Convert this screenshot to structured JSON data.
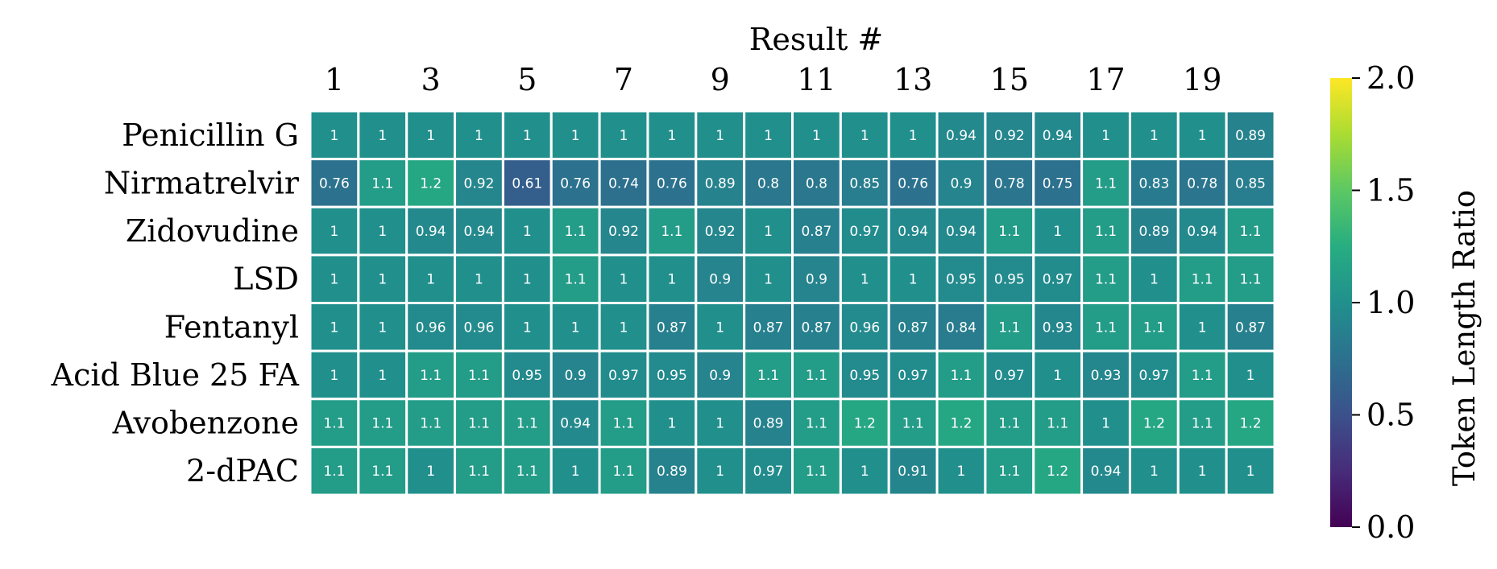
{
  "chart_data": {
    "type": "heatmap",
    "title": "",
    "xlabel": "Result #",
    "ylabel": "",
    "x_tick_labels": [
      "1",
      "3",
      "5",
      "7",
      "9",
      "11",
      "13",
      "15",
      "17",
      "19"
    ],
    "x_tick_positions": [
      1,
      3,
      5,
      7,
      9,
      11,
      13,
      15,
      17,
      19
    ],
    "columns": [
      1,
      2,
      3,
      4,
      5,
      6,
      7,
      8,
      9,
      10,
      11,
      12,
      13,
      14,
      15,
      16,
      17,
      18,
      19,
      20
    ],
    "rows": [
      "Penicillin G",
      "Nirmatrelvir",
      "Zidovudine",
      "LSD",
      "Fentanyl",
      "Acid Blue 25 FA",
      "Avobenzone",
      "2-dPAC"
    ],
    "values": [
      [
        1,
        1,
        1,
        1,
        1,
        1,
        1,
        1,
        1,
        1,
        1,
        1,
        1,
        0.94,
        0.92,
        0.94,
        1,
        1,
        1,
        0.89
      ],
      [
        0.76,
        1.1,
        1.2,
        0.92,
        0.61,
        0.76,
        0.74,
        0.76,
        0.89,
        0.8,
        0.8,
        0.85,
        0.76,
        0.9,
        0.78,
        0.75,
        1.1,
        0.83,
        0.78,
        0.85
      ],
      [
        1,
        1,
        0.94,
        0.94,
        1,
        1.1,
        0.92,
        1.1,
        0.92,
        1,
        0.87,
        0.97,
        0.94,
        0.94,
        1.1,
        1,
        1.1,
        0.89,
        0.94,
        1.1
      ],
      [
        1,
        1,
        1,
        1,
        1,
        1.1,
        1,
        1,
        0.9,
        1,
        0.9,
        1,
        1,
        0.95,
        0.95,
        0.97,
        1.1,
        1,
        1.1,
        1.1
      ],
      [
        1,
        1,
        0.96,
        0.96,
        1,
        1,
        1,
        0.87,
        1,
        0.87,
        0.87,
        0.96,
        0.87,
        0.84,
        1.1,
        0.93,
        1.1,
        1.1,
        1,
        0.87
      ],
      [
        1,
        1,
        1.1,
        1.1,
        0.95,
        0.9,
        0.97,
        0.95,
        0.9,
        1.1,
        1.1,
        0.95,
        0.97,
        1.1,
        0.97,
        1,
        0.93,
        0.97,
        1.1,
        1
      ],
      [
        1.1,
        1.1,
        1.1,
        1.1,
        1.1,
        0.94,
        1.1,
        1,
        1,
        0.89,
        1.1,
        1.2,
        1.1,
        1.2,
        1.1,
        1.1,
        1,
        1.2,
        1.1,
        1.2
      ],
      [
        1.1,
        1.1,
        1,
        1.1,
        1.1,
        1,
        1.1,
        0.89,
        1,
        0.97,
        1.1,
        1,
        0.91,
        1,
        1.1,
        1.2,
        0.94,
        1,
        1,
        1
      ]
    ],
    "colorbar": {
      "label": "Token Length Ratio",
      "vmin": 0.0,
      "vmax": 2.0,
      "colormap": "viridis",
      "ticks": [
        0.0,
        0.5,
        1.0,
        1.5,
        2.0
      ],
      "tick_labels": [
        "0.0",
        "0.5",
        "1.0",
        "1.5",
        "2.0"
      ]
    },
    "grid": false,
    "cell_text_color": "#ffffff",
    "cell_border_color": "#ffffff"
  }
}
